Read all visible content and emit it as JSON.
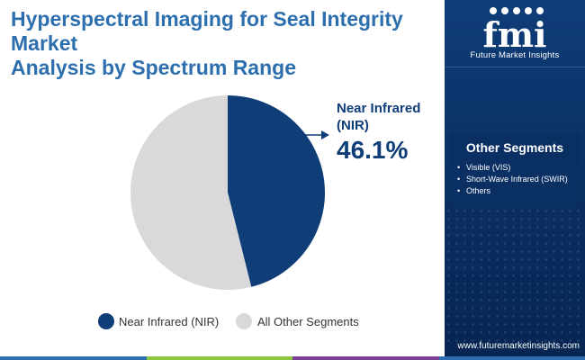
{
  "title": {
    "line1": "Hyperspectral Imaging for Seal Integrity Market",
    "line2": "Analysis by Spectrum Range"
  },
  "chart_data": {
    "type": "pie",
    "slices": [
      {
        "label": "Near Infrared (NIR)",
        "value": 46.1,
        "color": "#0e3d78"
      },
      {
        "label": "All Other Segments",
        "value": 53.9,
        "color": "#d9d9d9"
      }
    ],
    "callout": {
      "label_line1": "Near Infrared",
      "label_line2": "(NIR)",
      "value": "46.1%"
    },
    "legend": [
      "Near Infrared (NIR)",
      "All Other Segments"
    ],
    "legend_position": "bottom"
  },
  "sidebar": {
    "logo_text": "fmi",
    "logo_caption": "Future Market Insights",
    "other_segments_title": "Other Segments",
    "other_segments": [
      "Visible (VIS)",
      "Short-Wave Infrared (SWIR)",
      "Others"
    ],
    "website": "www.futuremarketinsights.com"
  },
  "colors": {
    "title": "#2d6fae",
    "accent_dark": "#0e3d78",
    "other": "#d9d9d9",
    "bottom_bar": [
      "#2d6fae",
      "#8dc63f",
      "#7b3f98",
      "#2d6fae"
    ]
  }
}
